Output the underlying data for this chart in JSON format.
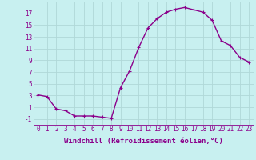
{
  "x": [
    0,
    1,
    2,
    3,
    4,
    5,
    6,
    7,
    8,
    9,
    10,
    11,
    12,
    13,
    14,
    15,
    16,
    17,
    18,
    19,
    20,
    21,
    22,
    23
  ],
  "y": [
    3.1,
    2.8,
    0.7,
    0.4,
    -0.5,
    -0.5,
    -0.5,
    -0.7,
    -0.9,
    4.3,
    7.2,
    11.2,
    14.5,
    16.1,
    17.2,
    17.7,
    18.0,
    17.6,
    17.2,
    15.8,
    12.3,
    11.5,
    9.5,
    8.7
  ],
  "line_color": "#8B008B",
  "marker": "+",
  "marker_size": 3,
  "bg_color": "#c8f0f0",
  "grid_color": "#b0d8d8",
  "xlabel": "Windchill (Refroidissement éolien,°C)",
  "xlim": [
    -0.5,
    23.5
  ],
  "ylim": [
    -2,
    19
  ],
  "yticks": [
    -1,
    1,
    3,
    5,
    7,
    9,
    11,
    13,
    15,
    17
  ],
  "xticks": [
    0,
    1,
    2,
    3,
    4,
    5,
    6,
    7,
    8,
    9,
    10,
    11,
    12,
    13,
    14,
    15,
    16,
    17,
    18,
    19,
    20,
    21,
    22,
    23
  ],
  "tick_label_color": "#8B008B",
  "tick_fontsize": 5.5,
  "xlabel_fontsize": 6.5,
  "line_width": 1.0
}
